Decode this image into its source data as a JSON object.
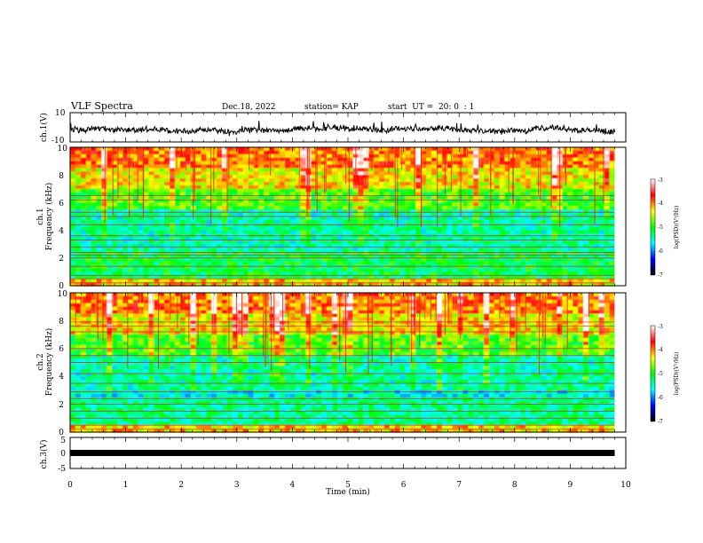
{
  "header": {
    "title": "VLF Spectra",
    "date": "Dec.18, 2022",
    "station": "station= KAP",
    "start": "start  UT =  20: 0  : 1"
  },
  "colorbar": {
    "label": "log(PSD)(V²/Hz)",
    "ticks": [
      "-3",
      "-4",
      "-5",
      "-6",
      "-7"
    ],
    "colors": [
      "#ffffff",
      "#ff0000",
      "#ffff00",
      "#00ff00",
      "#00ffff",
      "#0000ff",
      "#000000"
    ]
  },
  "chart_data": [
    {
      "type": "line",
      "name": "ch1-waveform",
      "ylabel": "ch.1(V)",
      "ylim": [
        -10,
        10
      ],
      "ytick_labels": [
        "10",
        "-10"
      ],
      "xlim": [
        0,
        10
      ],
      "x_end": 9.8,
      "baseline": -1.5,
      "amplitude": 4,
      "color": "#000000"
    },
    {
      "type": "heatmap",
      "name": "ch1-spectrogram",
      "ylabel_top": "ch.1",
      "ylabel": "Frequency (kHz)",
      "ylim": [
        0,
        10
      ],
      "ytick_labels": [
        "0",
        "2",
        "4",
        "6",
        "8",
        "10"
      ],
      "xlim": [
        0,
        10
      ],
      "x_end": 9.8,
      "zlim": [
        -7,
        -3
      ],
      "bands_khz": [
        0.2,
        0.5,
        0.75,
        1.4,
        2.0,
        2.2,
        2.4,
        2.8,
        3.3,
        3.6,
        4.4,
        5.0,
        5.3,
        6.2,
        6.5
      ]
    },
    {
      "type": "heatmap",
      "name": "ch2-spectrogram",
      "ylabel_top": "ch.2",
      "ylabel": "Frequency (kHz)",
      "ylim": [
        0,
        10
      ],
      "ytick_labels": [
        "0",
        "2",
        "4",
        "6",
        "8",
        "10"
      ],
      "xlim": [
        0,
        10
      ],
      "x_end": 9.8,
      "zlim": [
        -7,
        -3
      ],
      "bands_khz": [
        0.2,
        0.5,
        1.0,
        1.5,
        2.0,
        2.4,
        2.9,
        3.5,
        4.2,
        5.0,
        5.5,
        6.0,
        7.2,
        7.6,
        7.9
      ]
    },
    {
      "type": "line",
      "name": "ch3-waveform",
      "ylabel": "ch.3(V)",
      "ylim": [
        -5,
        5
      ],
      "ytick_labels": [
        "5",
        "0",
        "-5"
      ],
      "xlim": [
        0,
        10
      ],
      "x_end": 9.8,
      "baseline": 0,
      "color": "#000000"
    }
  ],
  "xaxis": {
    "label": "Time (min)",
    "ticks": [
      "0",
      "1",
      "2",
      "3",
      "4",
      "5",
      "6",
      "7",
      "8",
      "9",
      "10"
    ]
  }
}
